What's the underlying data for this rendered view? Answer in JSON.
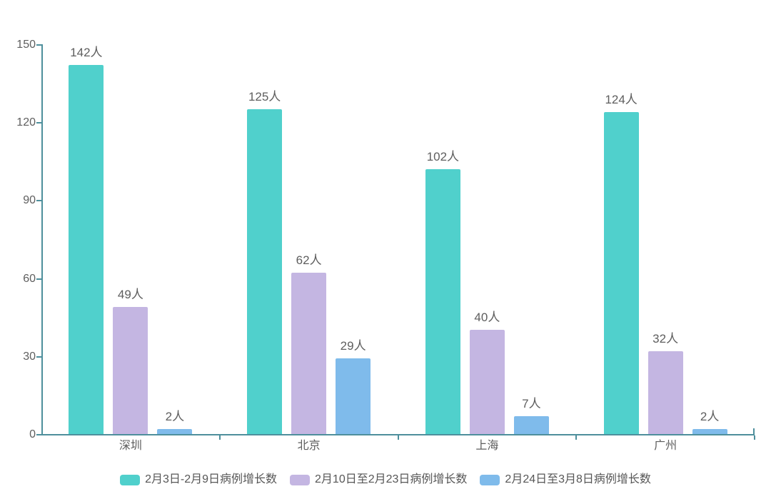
{
  "chart_data": {
    "type": "bar",
    "categories": [
      "深圳",
      "北京",
      "上海",
      "广州"
    ],
    "series": [
      {
        "name": "2月3日-2月9日病例增长数",
        "color": "#50D0CC",
        "values": [
          142,
          125,
          102,
          124
        ]
      },
      {
        "name": "2月10日至2月23日病例增长数",
        "color": "#C4B6E2",
        "values": [
          49,
          62,
          40,
          32
        ]
      },
      {
        "name": "2月24日至3月8日病例增长数",
        "color": "#7FBBEB",
        "values": [
          2,
          29,
          7,
          2
        ]
      }
    ],
    "value_label_unit": "人",
    "ylim": [
      0,
      150
    ],
    "yticks": [
      0,
      30,
      60,
      90,
      120,
      150
    ],
    "grid": "off",
    "legend_position": "bottom",
    "axis_color": "#4E8F9C",
    "label_color": "#5E5E5E",
    "title": "",
    "xlabel": "",
    "ylabel": ""
  }
}
